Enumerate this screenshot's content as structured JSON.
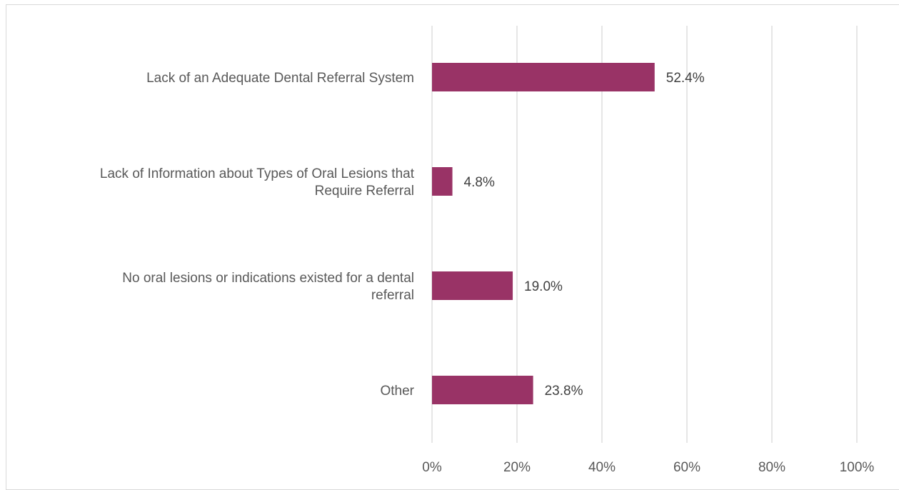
{
  "chart_data": {
    "type": "bar",
    "orientation": "horizontal",
    "categories": [
      [
        "Lack of an Adequate Dental Referral System"
      ],
      [
        "Lack of Information about Types of Oral Lesions that",
        "Require Referral"
      ],
      [
        "No oral lesions or indications existed for a dental",
        "referral"
      ],
      [
        "Other"
      ]
    ],
    "values": [
      52.4,
      4.8,
      19.0,
      23.8
    ],
    "data_labels": [
      "52.4%",
      "4.8%",
      "19.0%",
      "23.8%"
    ],
    "x_ticks": [
      "0%",
      "20%",
      "40%",
      "60%",
      "80%",
      "100%"
    ],
    "xlim": [
      0,
      100
    ],
    "grid": true,
    "colors": {
      "bar": "#993366",
      "grid": "#d9d9d9",
      "text": "#595959"
    }
  }
}
